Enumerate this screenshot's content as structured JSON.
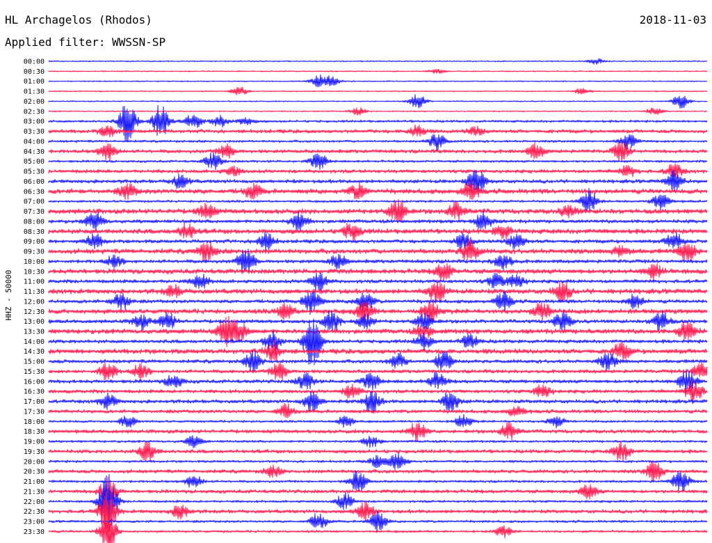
{
  "header": {
    "station": "HL Archagelos (Rhodos)",
    "date": "2018-11-03",
    "filter": "Applied filter: WWSSN-SP"
  },
  "chart_data": {
    "type": "line",
    "ylabel": "HHZ - 50000",
    "colors": [
      "#1a1aff",
      "#ff1a4f"
    ],
    "rows": [
      "00:00",
      "00:30",
      "01:00",
      "01:30",
      "02:00",
      "02:30",
      "03:00",
      "03:30",
      "04:00",
      "04:30",
      "05:00",
      "05:30",
      "06:00",
      "06:30",
      "07:00",
      "07:30",
      "08:00",
      "08:30",
      "09:00",
      "09:30",
      "10:00",
      "10:30",
      "11:00",
      "11:30",
      "12:00",
      "12:30",
      "13:00",
      "13:30",
      "14:00",
      "14:30",
      "15:00",
      "15:30",
      "16:00",
      "16:30",
      "17:00",
      "17:30",
      "18:00",
      "18:30",
      "19:00",
      "19:30",
      "20:00",
      "20:30",
      "21:00",
      "21:30",
      "22:00",
      "22:30",
      "23:00",
      "23:30"
    ],
    "noise": [
      1,
      1,
      1,
      1,
      1,
      1,
      2,
      3,
      2,
      3,
      2,
      3,
      3,
      4,
      2,
      4,
      3,
      4,
      3,
      4,
      3,
      4,
      3,
      4,
      3,
      4,
      3,
      4,
      3,
      4,
      3,
      3,
      3,
      3,
      3,
      3,
      2,
      3,
      2,
      3,
      2,
      3,
      2,
      3,
      2,
      3,
      2,
      2
    ],
    "events": [
      [
        [
          0.83,
          4
        ]
      ],
      [
        [
          0.59,
          3
        ]
      ],
      [
        [
          0.41,
          8
        ],
        [
          0.43,
          7
        ]
      ],
      [
        [
          0.29,
          6
        ],
        [
          0.81,
          4
        ]
      ],
      [
        [
          0.56,
          10
        ],
        [
          0.96,
          10
        ]
      ],
      [
        [
          0.47,
          5
        ],
        [
          0.92,
          5
        ]
      ],
      [
        [
          0.12,
          30
        ],
        [
          0.17,
          25
        ],
        [
          0.22,
          10
        ],
        [
          0.26,
          8
        ],
        [
          0.3,
          5
        ]
      ],
      [
        [
          0.09,
          8
        ],
        [
          0.56,
          8
        ],
        [
          0.65,
          6
        ]
      ],
      [
        [
          0.59,
          12
        ],
        [
          0.88,
          10
        ]
      ],
      [
        [
          0.09,
          14
        ],
        [
          0.27,
          10
        ],
        [
          0.74,
          10
        ],
        [
          0.87,
          14
        ]
      ],
      [
        [
          0.25,
          12
        ],
        [
          0.41,
          12
        ]
      ],
      [
        [
          0.28,
          6
        ],
        [
          0.88,
          8
        ],
        [
          0.95,
          10
        ]
      ],
      [
        [
          0.2,
          10
        ],
        [
          0.65,
          18
        ],
        [
          0.95,
          14
        ]
      ],
      [
        [
          0.12,
          10
        ],
        [
          0.31,
          10
        ],
        [
          0.47,
          10
        ],
        [
          0.64,
          14
        ]
      ],
      [
        [
          0.82,
          18
        ],
        [
          0.93,
          12
        ]
      ],
      [
        [
          0.24,
          10
        ],
        [
          0.53,
          18
        ],
        [
          0.62,
          12
        ],
        [
          0.79,
          8
        ]
      ],
      [
        [
          0.07,
          14
        ],
        [
          0.38,
          12
        ],
        [
          0.66,
          14
        ]
      ],
      [
        [
          0.21,
          10
        ],
        [
          0.46,
          12
        ],
        [
          0.69,
          10
        ]
      ],
      [
        [
          0.07,
          10
        ],
        [
          0.33,
          12
        ],
        [
          0.63,
          10
        ],
        [
          0.71,
          12
        ],
        [
          0.95,
          12
        ]
      ],
      [
        [
          0.24,
          14
        ],
        [
          0.64,
          16
        ],
        [
          0.87,
          8
        ],
        [
          0.97,
          14
        ]
      ],
      [
        [
          0.1,
          8
        ],
        [
          0.3,
          20
        ],
        [
          0.44,
          10
        ],
        [
          0.69,
          12
        ]
      ],
      [
        [
          0.6,
          14
        ],
        [
          0.92,
          10
        ]
      ],
      [
        [
          0.23,
          10
        ],
        [
          0.41,
          14
        ],
        [
          0.68,
          10
        ],
        [
          0.71,
          10
        ]
      ],
      [
        [
          0.19,
          8
        ],
        [
          0.59,
          16
        ],
        [
          0.78,
          14
        ]
      ],
      [
        [
          0.11,
          12
        ],
        [
          0.4,
          18
        ],
        [
          0.48,
          14
        ],
        [
          0.69,
          14
        ],
        [
          0.89,
          10
        ]
      ],
      [
        [
          0.36,
          10
        ],
        [
          0.48,
          14
        ],
        [
          0.58,
          16
        ],
        [
          0.75,
          12
        ]
      ],
      [
        [
          0.14,
          10
        ],
        [
          0.18,
          12
        ],
        [
          0.43,
          14
        ],
        [
          0.48,
          10
        ],
        [
          0.57,
          12
        ],
        [
          0.78,
          14
        ],
        [
          0.93,
          14
        ]
      ],
      [
        [
          0.27,
          20
        ],
        [
          0.29,
          12
        ],
        [
          0.57,
          10
        ],
        [
          0.97,
          14
        ]
      ],
      [
        [
          0.4,
          40
        ],
        [
          0.34,
          14
        ],
        [
          0.57,
          10
        ],
        [
          0.64,
          10
        ]
      ],
      [
        [
          0.34,
          14
        ],
        [
          0.87,
          12
        ]
      ],
      [
        [
          0.31,
          14
        ],
        [
          0.53,
          10
        ],
        [
          0.6,
          14
        ],
        [
          0.85,
          12
        ]
      ],
      [
        [
          0.09,
          14
        ],
        [
          0.14,
          10
        ],
        [
          0.35,
          14
        ],
        [
          0.99,
          12
        ]
      ],
      [
        [
          0.19,
          10
        ],
        [
          0.39,
          12
        ],
        [
          0.49,
          12
        ],
        [
          0.59,
          12
        ],
        [
          0.97,
          16
        ]
      ],
      [
        [
          0.46,
          10
        ],
        [
          0.75,
          10
        ],
        [
          0.98,
          16
        ]
      ],
      [
        [
          0.09,
          10
        ],
        [
          0.4,
          14
        ],
        [
          0.49,
          16
        ],
        [
          0.61,
          14
        ]
      ],
      [
        [
          0.36,
          10
        ],
        [
          0.71,
          8
        ]
      ],
      [
        [
          0.12,
          8
        ],
        [
          0.45,
          8
        ],
        [
          0.63,
          10
        ],
        [
          0.77,
          8
        ]
      ],
      [
        [
          0.56,
          14
        ],
        [
          0.7,
          12
        ]
      ],
      [
        [
          0.22,
          8
        ],
        [
          0.49,
          8
        ]
      ],
      [
        [
          0.15,
          14
        ],
        [
          0.87,
          14
        ]
      ],
      [
        [
          0.5,
          8
        ],
        [
          0.53,
          12
        ]
      ],
      [
        [
          0.34,
          8
        ],
        [
          0.92,
          14
        ]
      ],
      [
        [
          0.22,
          10
        ],
        [
          0.47,
          16
        ],
        [
          0.96,
          16
        ]
      ],
      [
        [
          0.09,
          20
        ],
        [
          0.82,
          10
        ]
      ],
      [
        [
          0.09,
          40
        ],
        [
          0.45,
          12
        ]
      ],
      [
        [
          0.09,
          30
        ],
        [
          0.2,
          10
        ],
        [
          0.48,
          14
        ]
      ],
      [
        [
          0.41,
          12
        ],
        [
          0.5,
          14
        ]
      ],
      [
        [
          0.09,
          30
        ],
        [
          0.69,
          8
        ]
      ]
    ]
  }
}
